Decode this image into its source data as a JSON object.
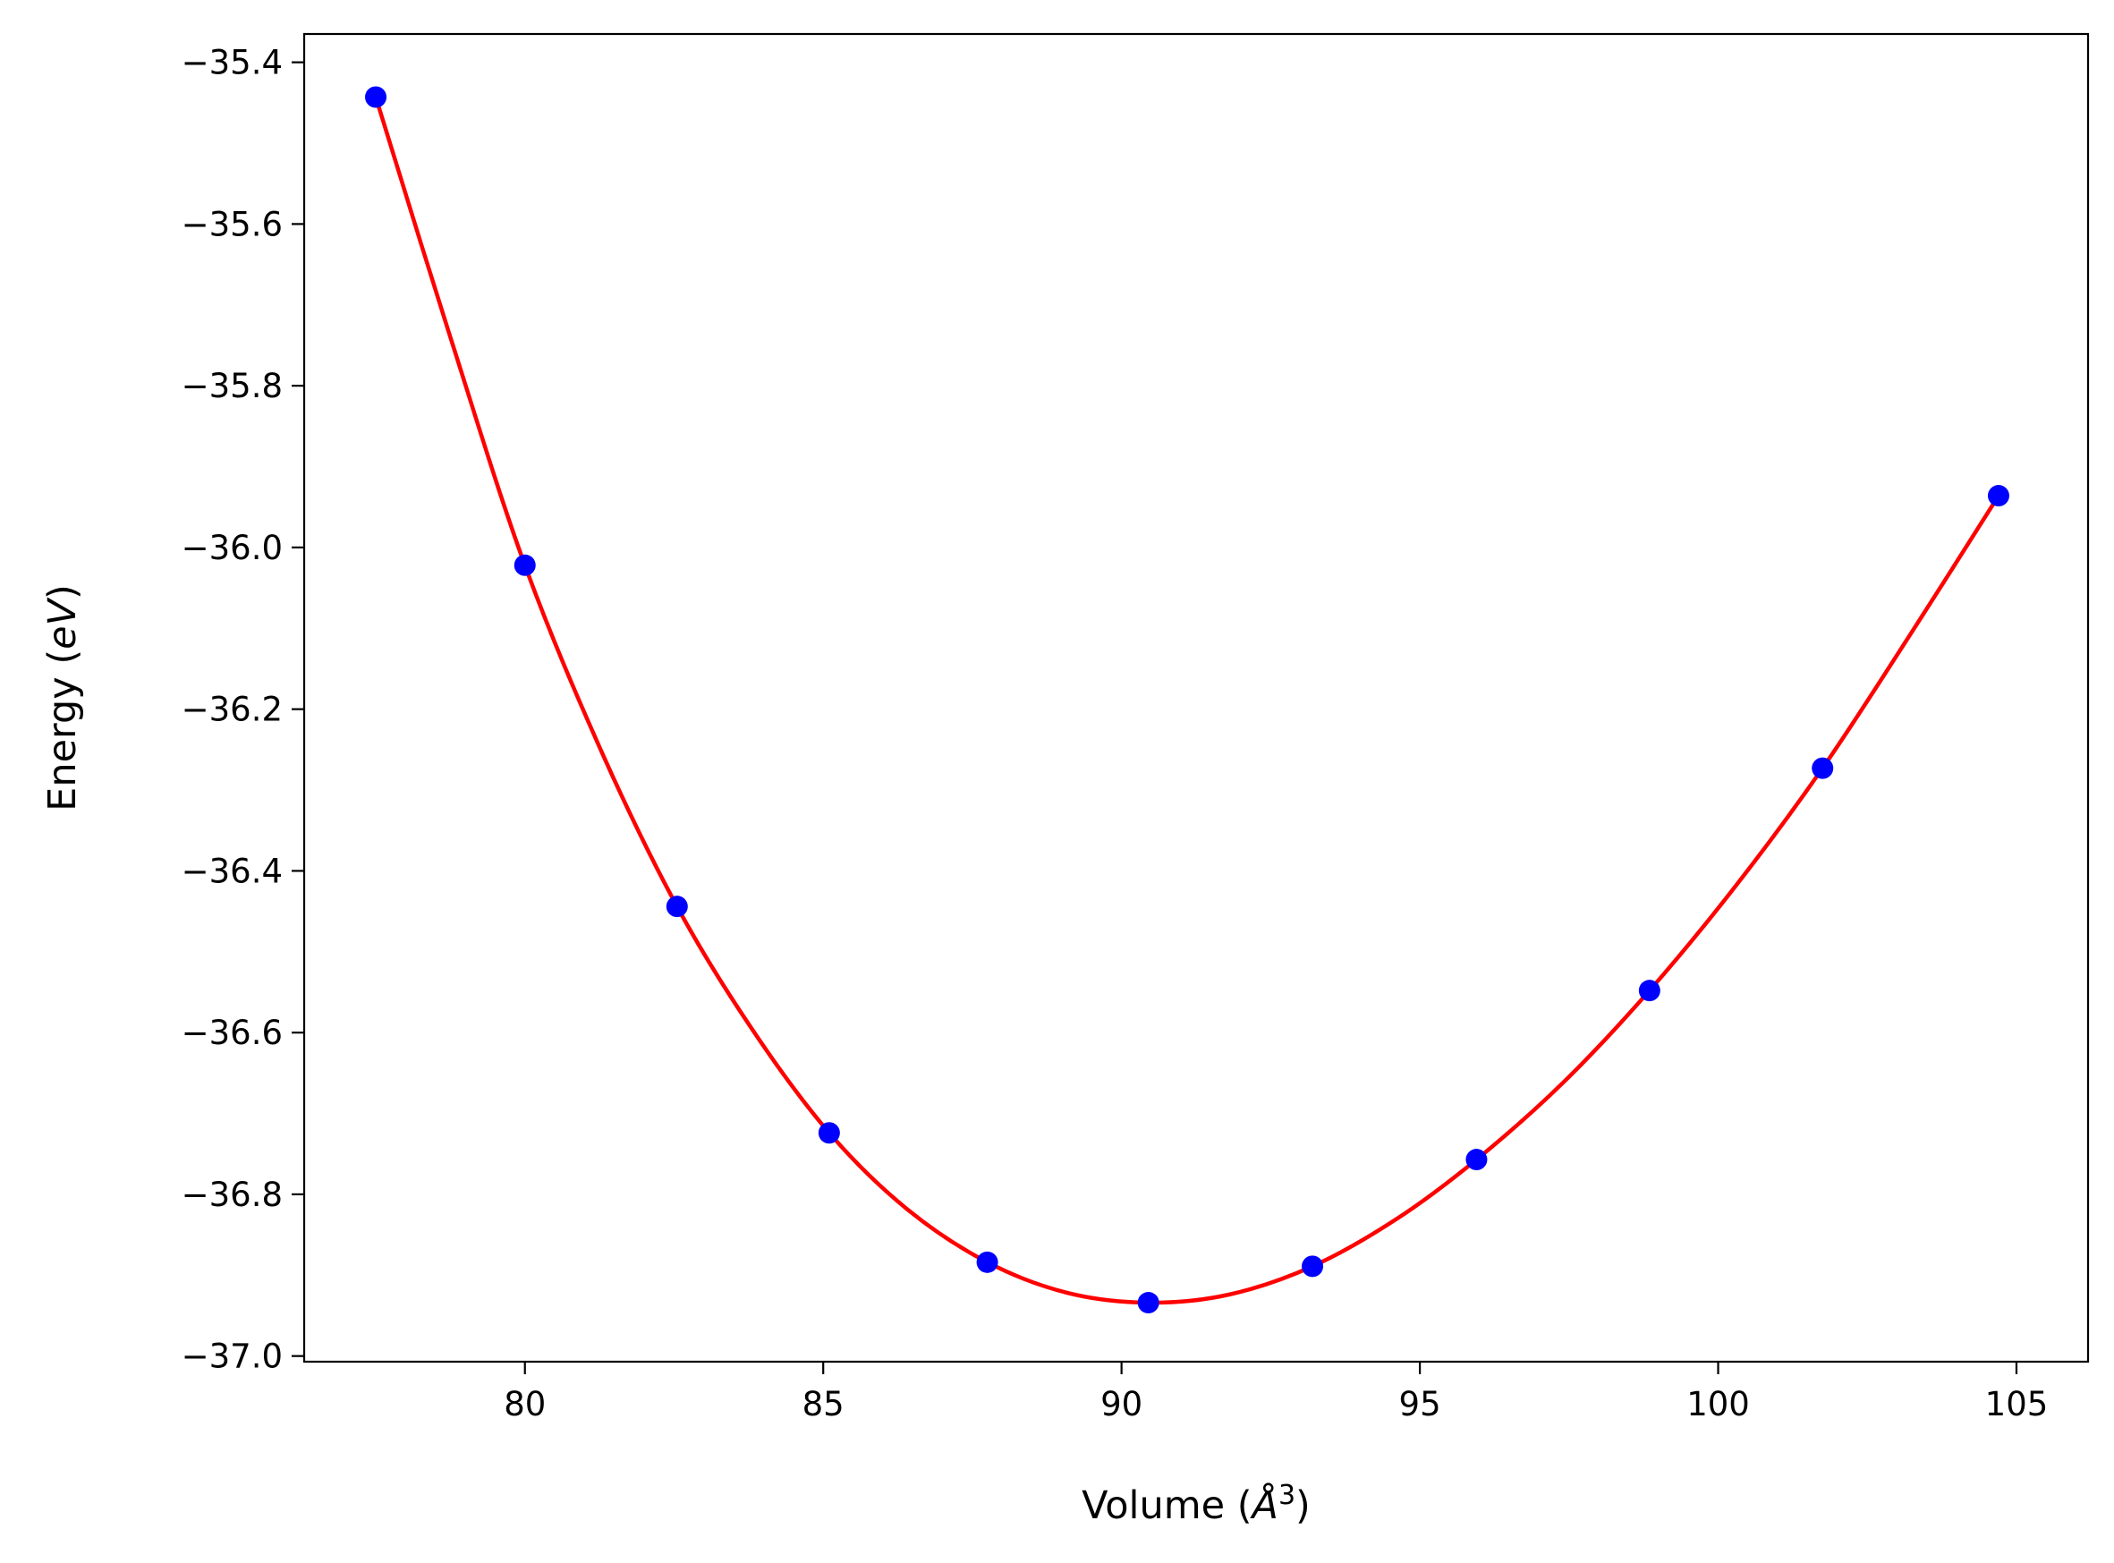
{
  "chart_data": {
    "type": "scatter",
    "xlabel_parts": {
      "text": "Volume (",
      "italic": "Å",
      "sup": "3",
      "close": ")"
    },
    "ylabel_parts": {
      "text": "Energy (",
      "italic": "eV",
      "close": ")"
    },
    "xlim": [
      76.3,
      106.2
    ],
    "ylim": [
      -37.007,
      -35.365
    ],
    "x_ticks": [
      80,
      85,
      90,
      95,
      100,
      105
    ],
    "x_tick_labels": [
      "80",
      "85",
      "90",
      "95",
      "100",
      "105"
    ],
    "y_ticks": [
      -35.4,
      -35.6,
      -35.8,
      -36.0,
      -36.2,
      -36.4,
      -36.6,
      -36.8,
      -37.0
    ],
    "y_tick_labels": [
      "−35.4",
      "−35.6",
      "−35.8",
      "−36.0",
      "−36.2",
      "−36.4",
      "−36.6",
      "−36.8",
      "−37.0"
    ],
    "grid": false,
    "series": [
      {
        "kind": "points",
        "color": "#0000ff",
        "x": [
          77.5,
          80.0,
          82.55,
          85.1,
          87.75,
          90.45,
          93.2,
          95.95,
          98.85,
          101.75,
          104.7
        ],
        "y": [
          -35.443,
          -36.022,
          -36.444,
          -36.724,
          -36.884,
          -36.934,
          -36.889,
          -36.757,
          -36.548,
          -36.273,
          -35.936
        ]
      },
      {
        "kind": "line",
        "color": "#ff0000",
        "x": [
          77.5,
          78.75,
          80.0,
          81.3,
          82.55,
          83.8,
          85.1,
          86.4,
          87.75,
          89.1,
          90.45,
          91.8,
          93.2,
          94.6,
          95.95,
          97.4,
          98.85,
          100.3,
          101.75,
          103.2,
          104.7
        ],
        "y": [
          -35.443,
          -35.74,
          -36.022,
          -36.255,
          -36.444,
          -36.595,
          -36.724,
          -36.818,
          -36.884,
          -36.922,
          -36.934,
          -36.924,
          -36.889,
          -36.831,
          -36.757,
          -36.662,
          -36.548,
          -36.418,
          -36.273,
          -36.11,
          -35.936
        ]
      }
    ]
  }
}
